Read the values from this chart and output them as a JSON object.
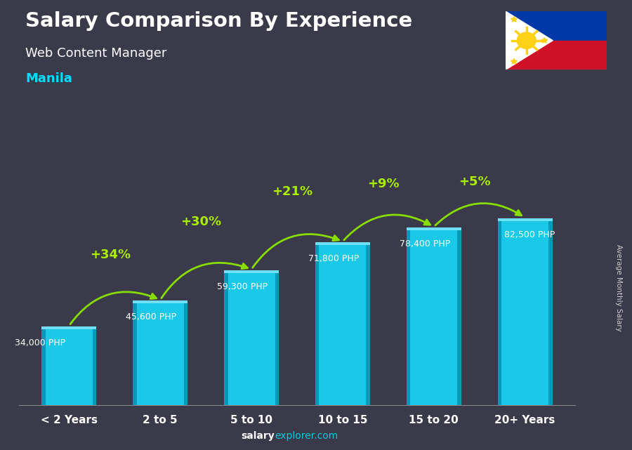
{
  "title": "Salary Comparison By Experience",
  "subtitle": "Web Content Manager",
  "city": "Manila",
  "categories": [
    "< 2 Years",
    "2 to 5",
    "5 to 10",
    "10 to 15",
    "15 to 20",
    "20+ Years"
  ],
  "values": [
    34000,
    45600,
    59300,
    71800,
    78400,
    82500
  ],
  "value_labels": [
    "34,000 PHP",
    "45,600 PHP",
    "59,300 PHP",
    "71,800 PHP",
    "78,400 PHP",
    "82,500 PHP"
  ],
  "pct_labels": [
    "+34%",
    "+30%",
    "+21%",
    "+9%",
    "+5%"
  ],
  "bar_face_color": "#1ac8e8",
  "bar_left_color": "#0090b0",
  "bar_top_color": "#70e0f8",
  "bar_right_color": "#008aaa",
  "bg_color": "#3a3a4a",
  "title_color": "#ffffff",
  "subtitle_color": "#ffffff",
  "city_color": "#00ddff",
  "value_label_color": "#ffffff",
  "pct_color": "#aaee00",
  "arrow_color": "#88dd00",
  "xlabel_color": "#ffffff",
  "ylabel_text": "Average Monthly Salary",
  "footer_salary_color": "#ffffff",
  "footer_explorer_color": "#00ccdd",
  "ylim_max": 105000,
  "bar_width": 0.6,
  "flag_blue": "#0038a8",
  "flag_red": "#ce1126",
  "flag_white": "#ffffff",
  "flag_yellow": "#fcd116"
}
